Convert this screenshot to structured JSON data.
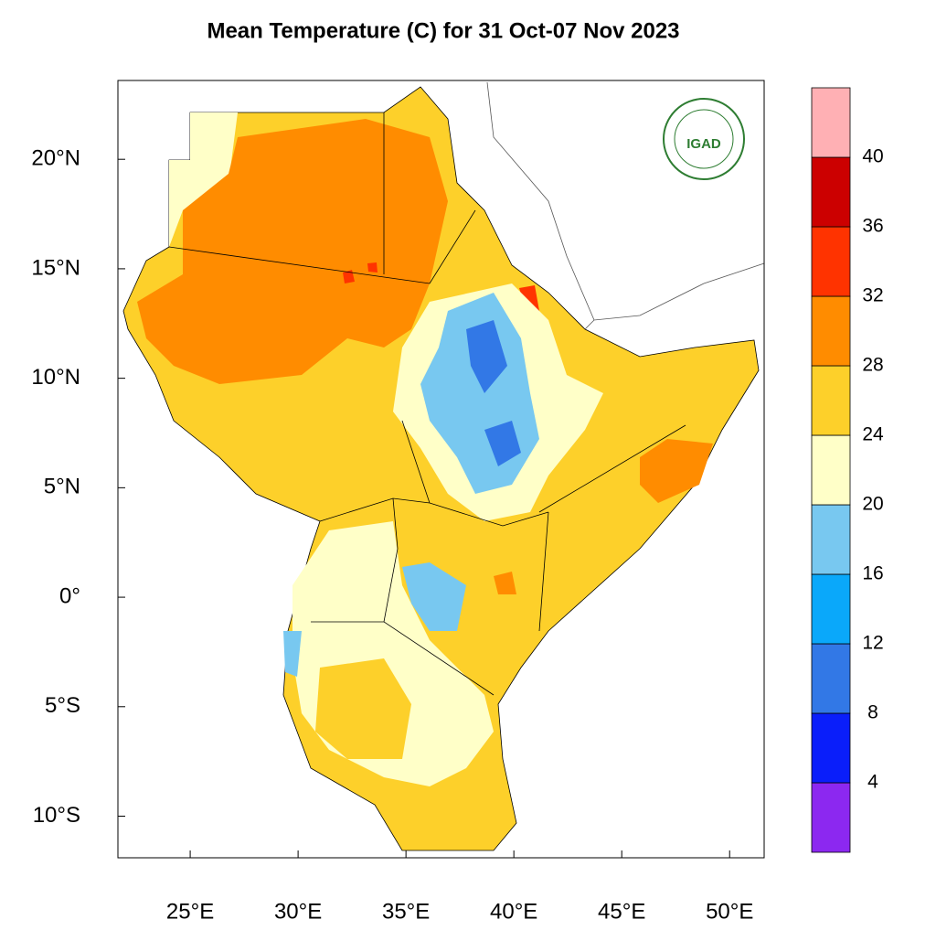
{
  "map": {
    "title": "Mean Temperature (C) for 31 Oct-07 Nov 2023",
    "logo_text": "IGAD",
    "xlim": [
      21.65,
      51.6
    ],
    "ylim": [
      -11.9,
      23.6
    ],
    "lon_ticks": [
      {
        "value": 25,
        "label": "25°E"
      },
      {
        "value": 30,
        "label": "30°E"
      },
      {
        "value": 35,
        "label": "35°E"
      },
      {
        "value": 40,
        "label": "40°E"
      },
      {
        "value": 45,
        "label": "45°E"
      },
      {
        "value": 50,
        "label": "50°E"
      }
    ],
    "lat_ticks": [
      {
        "value": 20,
        "label": "20°N"
      },
      {
        "value": 15,
        "label": "15°N"
      },
      {
        "value": 10,
        "label": "10°N"
      },
      {
        "value": 5,
        "label": "5°N"
      },
      {
        "value": 0,
        "label": "0°"
      },
      {
        "value": -5,
        "label": "5°S"
      },
      {
        "value": -10,
        "label": "10°S"
      }
    ],
    "colorbar": {
      "levels": [
        4,
        8,
        12,
        16,
        20,
        24,
        28,
        32,
        36,
        40
      ],
      "colors": [
        "#8c28f0",
        "#0a1efa",
        "#3278e6",
        "#0aa8fa",
        "#78c8f0",
        "#ffffc8",
        "#fdd02a",
        "#ff8c00",
        "#ff3300",
        "#cc0000",
        "#ffb0b4"
      ]
    }
  }
}
